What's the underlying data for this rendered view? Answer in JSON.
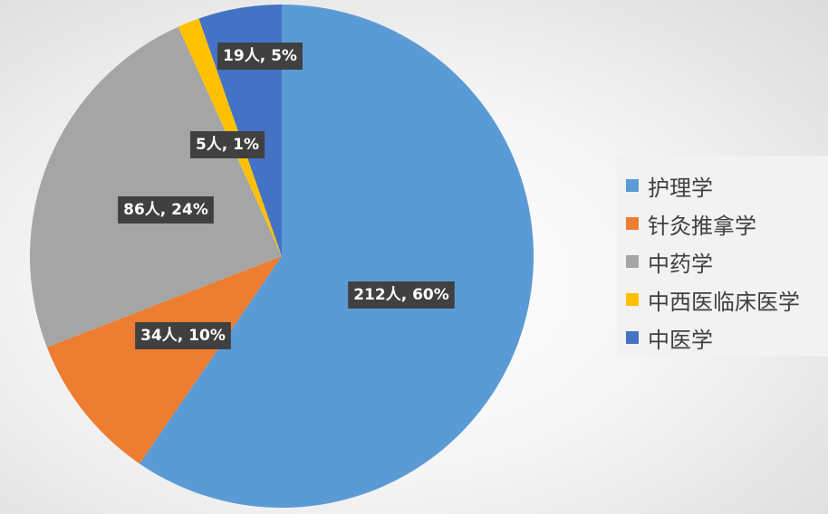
{
  "chart_data": {
    "type": "pie",
    "categories": [
      "护理学",
      "针灸推拿学",
      "中药学",
      "中西医临床医学",
      "中医学"
    ],
    "values": [
      212,
      34,
      86,
      5,
      19
    ],
    "percents": [
      60,
      10,
      24,
      1,
      5
    ],
    "data_labels": [
      "212人, 60%",
      "34人, 10%",
      "86人, 24%",
      "5人, 1%",
      "19人, 5%"
    ],
    "colors": [
      "#5b9bd5",
      "#ed7d31",
      "#a5a5a5",
      "#ffc000",
      "#4472c4"
    ],
    "start_angle_deg": 0,
    "direction": "clockwise",
    "legend_position": "right"
  }
}
